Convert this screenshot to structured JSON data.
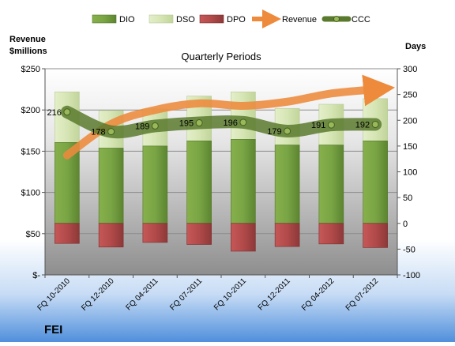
{
  "chart_data": {
    "type": "bar",
    "title": "Quarterly Periods",
    "company": "FEI",
    "left_axis_label": [
      "Revenue",
      "$millions"
    ],
    "right_axis_label": "Days",
    "categories": [
      "FQ 10-2010",
      "FQ 12-2010",
      "FQ 04-2011",
      "FQ 07-2011",
      "FQ 10-2011",
      "FQ 12-2011",
      "FQ 04-2012",
      "FQ 07-2012"
    ],
    "left_axis": {
      "min": 0,
      "max": 250,
      "step": 50,
      "ticks": [
        "$-",
        "$50",
        "$100",
        "$150",
        "$200",
        "$250"
      ]
    },
    "right_axis": {
      "min": -100,
      "max": 300,
      "step": 50,
      "ticks": [
        "-100",
        "-50",
        "0",
        "50",
        "100",
        "150",
        "200",
        "250",
        "300"
      ]
    },
    "series": [
      {
        "name": "DIO",
        "axis": "right",
        "color": "#6f9a3a",
        "values": [
          157,
          146,
          150,
          160,
          163,
          152,
          152,
          160
        ]
      },
      {
        "name": "DSO",
        "axis": "right",
        "color": "#d6e5b4",
        "values": [
          98,
          73,
          72,
          87,
          92,
          71,
          79,
          82
        ]
      },
      {
        "name": "DPO",
        "axis": "right",
        "color": "#b24a4a",
        "values": [
          -39,
          -46,
          -37,
          -41,
          -54,
          -45,
          -40,
          -47
        ]
      },
      {
        "name": "Revenue",
        "axis": "left",
        "color": "#ed8a3c",
        "values": [
          145,
          183,
          200,
          208,
          205,
          210,
          220,
          225
        ]
      },
      {
        "name": "CCC",
        "axis": "right",
        "color": "#5a7a2e",
        "values": [
          216,
          178,
          189,
          195,
          196,
          179,
          191,
          192
        ]
      }
    ],
    "ccc_labels": [
      "216",
      "178",
      "189",
      "195",
      "196",
      "179",
      "191",
      "192"
    ],
    "legend_position": "top",
    "grid": true
  }
}
